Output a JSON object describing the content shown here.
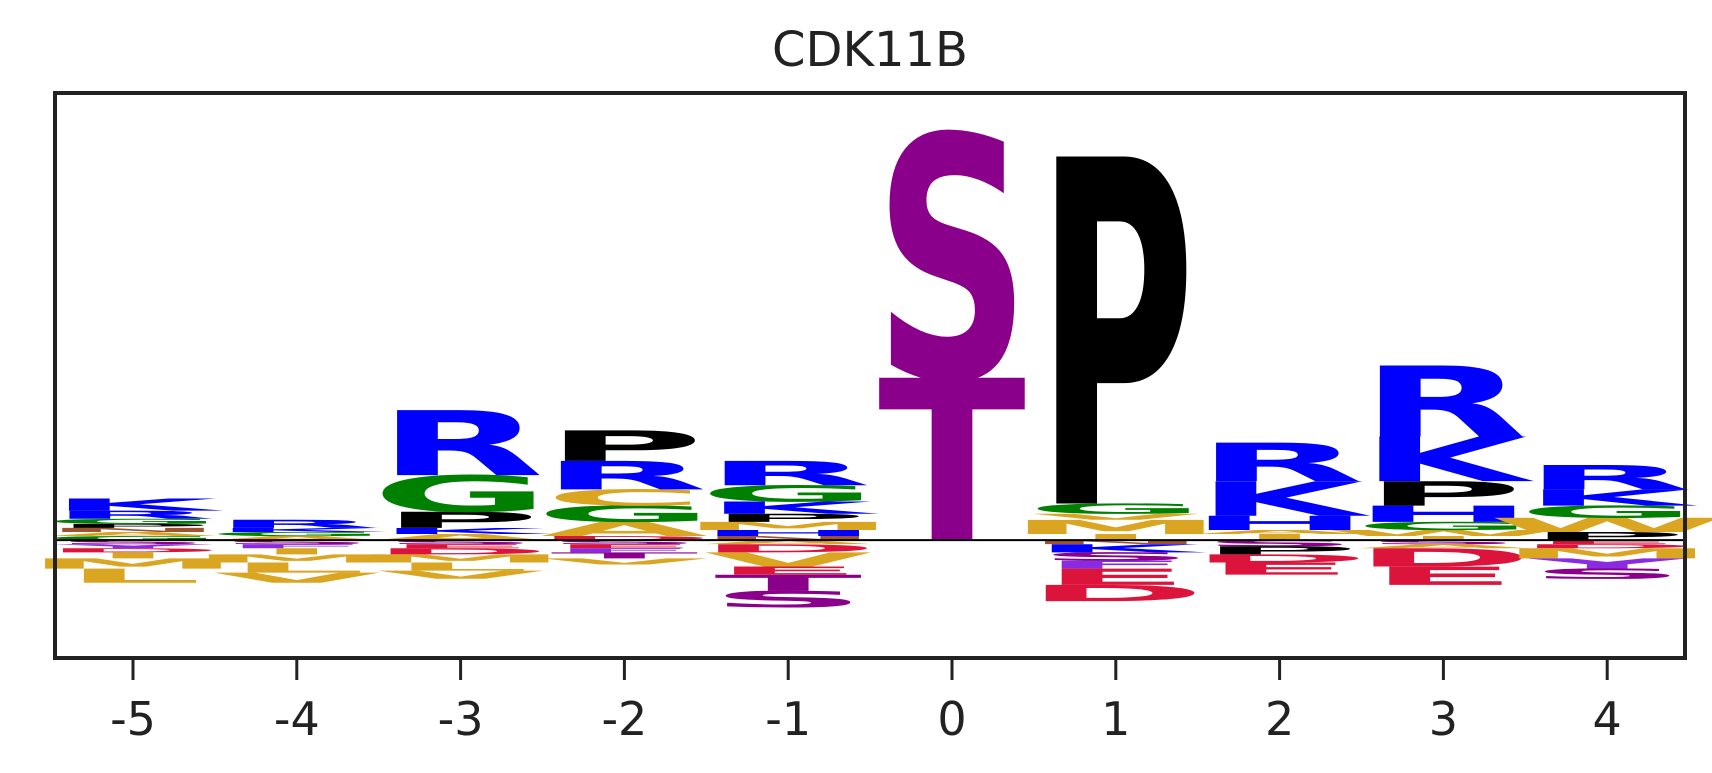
{
  "chart_data": {
    "type": "sequence-logo",
    "title": "CDK11B",
    "xlabel": "",
    "ylabel": "",
    "ylim": [
      -0.58,
      2.2
    ],
    "grid": false,
    "positions": [
      "-5",
      "-4",
      "-3",
      "-2",
      "-1",
      "0",
      "1",
      "2",
      "3",
      "4"
    ],
    "colors": {
      "basic": "#0000FF",
      "proline": "#000000",
      "glycine": "#008000",
      "hydrophobic": "#DAA520",
      "st": "#8B008B",
      "acidic": "#DC143C",
      "aromatic": "#8A2BE2",
      "polar": "#A0522D"
    },
    "letters": [
      {
        "position": "-5",
        "up": [
          {
            "aa": "G",
            "h": 0.02
          },
          {
            "aa": "A",
            "h": 0.02
          },
          {
            "aa": "N",
            "h": 0.02
          },
          {
            "aa": "P",
            "h": 0.02
          },
          {
            "aa": "G",
            "h": 0.025
          },
          {
            "aa": "R",
            "h": 0.04
          },
          {
            "aa": "K",
            "h": 0.06
          }
        ],
        "down": [
          {
            "aa": "S",
            "h": 0.02
          },
          {
            "aa": "Y",
            "h": 0.02
          },
          {
            "aa": "D",
            "h": 0.02
          },
          {
            "aa": "I",
            "h": 0.03
          },
          {
            "aa": "M",
            "h": 0.05
          },
          {
            "aa": "L",
            "h": 0.07
          }
        ]
      },
      {
        "position": "-4",
        "up": [
          {
            "aa": "A",
            "h": 0.02
          },
          {
            "aa": "G",
            "h": 0.02
          },
          {
            "aa": "K",
            "h": 0.02
          },
          {
            "aa": "R",
            "h": 0.04
          }
        ],
        "down": [
          {
            "aa": "S",
            "h": 0.02
          },
          {
            "aa": "F",
            "h": 0.02
          },
          {
            "aa": "I",
            "h": 0.03
          },
          {
            "aa": "M",
            "h": 0.04
          },
          {
            "aa": "L",
            "h": 0.05
          },
          {
            "aa": "V",
            "h": 0.05
          }
        ]
      },
      {
        "position": "-3",
        "up": [
          {
            "aa": "A",
            "h": 0.03
          },
          {
            "aa": "K",
            "h": 0.03
          },
          {
            "aa": "P",
            "h": 0.08
          },
          {
            "aa": "G",
            "h": 0.18
          },
          {
            "aa": "R",
            "h": 0.32
          }
        ],
        "down": [
          {
            "aa": "S",
            "h": 0.02
          },
          {
            "aa": "E",
            "h": 0.02
          },
          {
            "aa": "D",
            "h": 0.03
          },
          {
            "aa": "M",
            "h": 0.04
          },
          {
            "aa": "L",
            "h": 0.04
          },
          {
            "aa": "V",
            "h": 0.04
          }
        ]
      },
      {
        "position": "-2",
        "up": [
          {
            "aa": "D",
            "h": 0.02
          },
          {
            "aa": "A",
            "h": 0.07
          },
          {
            "aa": "G",
            "h": 0.08
          },
          {
            "aa": "C",
            "h": 0.08
          },
          {
            "aa": "R",
            "h": 0.14
          },
          {
            "aa": "P",
            "h": 0.15
          }
        ],
        "down": [
          {
            "aa": "S",
            "h": 0.02
          },
          {
            "aa": "E",
            "h": 0.02
          },
          {
            "aa": "F",
            "h": 0.02
          },
          {
            "aa": "T",
            "h": 0.03
          },
          {
            "aa": "V",
            "h": 0.03
          }
        ]
      },
      {
        "position": "-1",
        "up": [
          {
            "aa": "N",
            "h": 0.02
          },
          {
            "aa": "H",
            "h": 0.03
          },
          {
            "aa": "M",
            "h": 0.04
          },
          {
            "aa": "P",
            "h": 0.04
          },
          {
            "aa": "K",
            "h": 0.06
          },
          {
            "aa": "G",
            "h": 0.08
          },
          {
            "aa": "R",
            "h": 0.12
          }
        ],
        "down": [
          {
            "aa": "A",
            "h": 0.02
          },
          {
            "aa": "D",
            "h": 0.04
          },
          {
            "aa": "V",
            "h": 0.07
          },
          {
            "aa": "E",
            "h": 0.04
          },
          {
            "aa": "T",
            "h": 0.08
          },
          {
            "aa": "S",
            "h": 0.08
          }
        ]
      },
      {
        "position": "0",
        "up": [
          {
            "aa": "T",
            "h": 0.8
          },
          {
            "aa": "S",
            "h": 1.2
          }
        ],
        "down": []
      },
      {
        "position": "1",
        "up": [
          {
            "aa": "I",
            "h": 0.03
          },
          {
            "aa": "M",
            "h": 0.07
          },
          {
            "aa": "V",
            "h": 0.03
          },
          {
            "aa": "G",
            "h": 0.05
          },
          {
            "aa": "P",
            "h": 1.71
          }
        ],
        "down": [
          {
            "aa": "N",
            "h": 0.02
          },
          {
            "aa": "K",
            "h": 0.04
          },
          {
            "aa": "S",
            "h": 0.04
          },
          {
            "aa": "F",
            "h": 0.04
          },
          {
            "aa": "E",
            "h": 0.08
          },
          {
            "aa": "D",
            "h": 0.08
          }
        ]
      },
      {
        "position": "2",
        "up": [
          {
            "aa": "I",
            "h": 0.03
          },
          {
            "aa": "A",
            "h": 0.02
          },
          {
            "aa": "H",
            "h": 0.07
          },
          {
            "aa": "K",
            "h": 0.17
          },
          {
            "aa": "R",
            "h": 0.19
          }
        ],
        "down": [
          {
            "aa": "S",
            "h": 0.03
          },
          {
            "aa": "P",
            "h": 0.04
          },
          {
            "aa": "D",
            "h": 0.04
          },
          {
            "aa": "E",
            "h": 0.06
          }
        ]
      },
      {
        "position": "3",
        "up": [
          {
            "aa": "I",
            "h": 0.02
          },
          {
            "aa": "W",
            "h": 0.03
          },
          {
            "aa": "G",
            "h": 0.04
          },
          {
            "aa": "H",
            "h": 0.08
          },
          {
            "aa": "P",
            "h": 0.12
          },
          {
            "aa": "K",
            "h": 0.22
          },
          {
            "aa": "R",
            "h": 0.35
          }
        ],
        "down": [
          {
            "aa": "S",
            "h": 0.02
          },
          {
            "aa": "A",
            "h": 0.02
          },
          {
            "aa": "D",
            "h": 0.09
          },
          {
            "aa": "E",
            "h": 0.09
          }
        ]
      },
      {
        "position": "4",
        "up": [
          {
            "aa": "P",
            "h": 0.04
          },
          {
            "aa": "W",
            "h": 0.07
          },
          {
            "aa": "G",
            "h": 0.06
          },
          {
            "aa": "K",
            "h": 0.08
          },
          {
            "aa": "R",
            "h": 0.12
          }
        ],
        "down": [
          {
            "aa": "E",
            "h": 0.02
          },
          {
            "aa": "D",
            "h": 0.02
          },
          {
            "aa": "M",
            "h": 0.05
          },
          {
            "aa": "Y",
            "h": 0.05
          },
          {
            "aa": "S",
            "h": 0.05
          }
        ]
      }
    ]
  }
}
